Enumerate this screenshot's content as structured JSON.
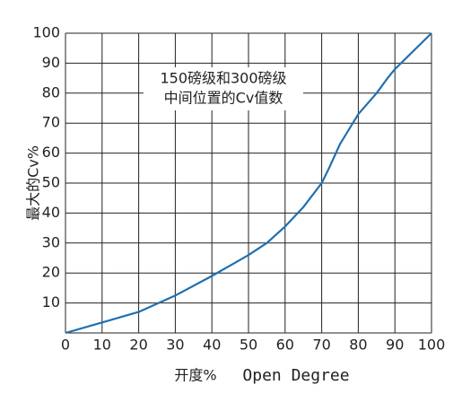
{
  "chart_data": {
    "type": "line",
    "annotation": [
      "150磅级和300磅级",
      "中间位置的Cv值数"
    ],
    "ylabel": "最大的Cv%",
    "xlabel": [
      "开度%",
      "Open Degree"
    ],
    "xlim": [
      0,
      100
    ],
    "xticks": [
      0,
      10,
      20,
      30,
      40,
      50,
      60,
      70,
      80,
      90,
      100
    ],
    "ylim": [
      0,
      100
    ],
    "yticks": [
      10,
      20,
      30,
      40,
      50,
      60,
      70,
      80,
      90,
      100
    ],
    "grid": true,
    "series": [
      {
        "color": "#1f6fb0",
        "x": [
          0,
          10,
          20,
          30,
          40,
          50,
          55,
          60,
          65,
          70,
          72,
          75,
          80,
          85,
          88,
          90,
          95,
          100
        ],
        "values": [
          0,
          3.5,
          7,
          12.5,
          19,
          26,
          30,
          35.5,
          42,
          50,
          55,
          63,
          73,
          80,
          85,
          88,
          94,
          100
        ]
      }
    ]
  }
}
